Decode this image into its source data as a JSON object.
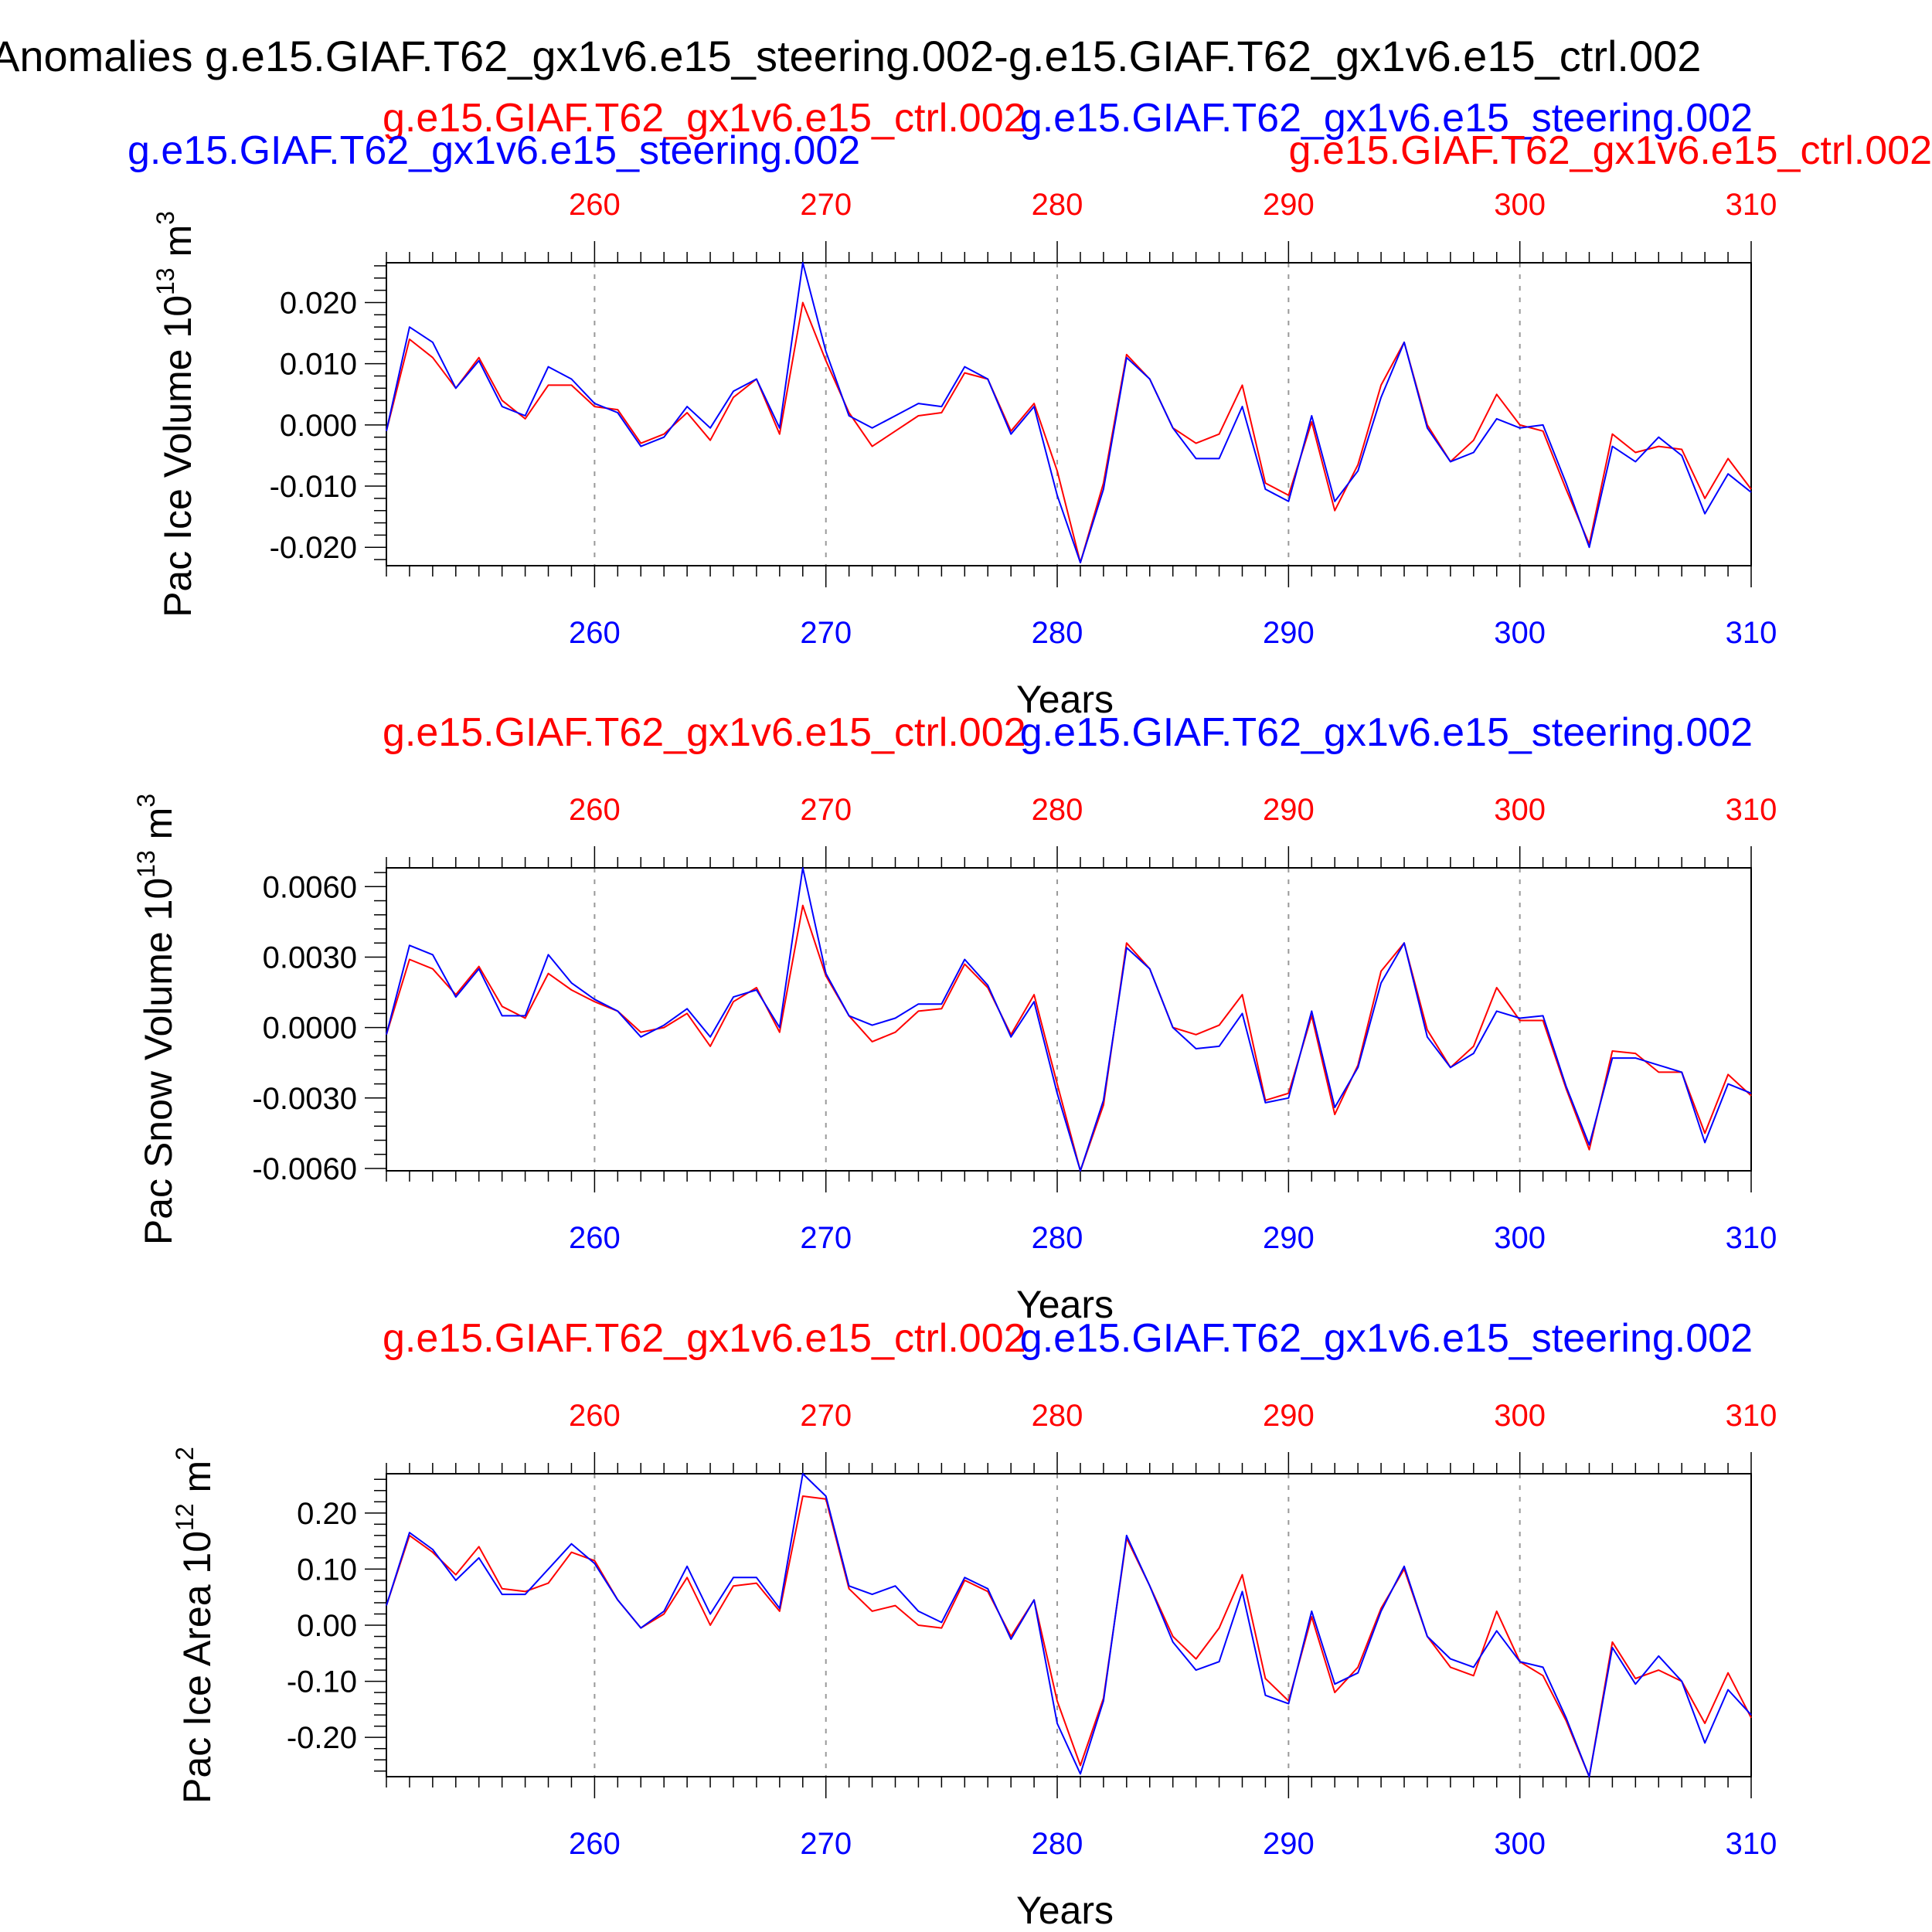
{
  "figure_title": "Anomalies g.e15.GIAF.T62_gx1v6.e15_steering.002-g.e15.GIAF.T62_gx1v6.e15_ctrl.002",
  "colors": {
    "ctrl": "#ff0000",
    "steering": "#0000ff",
    "axis": "#000000",
    "grid": "#999999"
  },
  "chart_data": [
    {
      "type": "line",
      "top_labels": {
        "red": "g.e15.GIAF.T62_gx1v6.e15_ctrl.002",
        "blue": "g.e15.GIAF.T62_gx1v6.e15_steering.002"
      },
      "ylabel": "Pac Ice Volume 10^13 m^3",
      "ylabel_parts": {
        "base": "Pac Ice Volume 10",
        "exp": "13",
        "unit": " m",
        "unit_exp": "3"
      },
      "xlabel": "Years",
      "xlim": [
        251,
        310
      ],
      "ylim": [
        -0.023,
        0.0265
      ],
      "xticks": [
        260,
        270,
        280,
        290,
        300,
        310
      ],
      "xtick_labels": [
        "260",
        "270",
        "280",
        "290",
        "300",
        "310"
      ],
      "yticks": [
        -0.02,
        -0.01,
        0.0,
        0.01,
        0.02
      ],
      "ytick_labels": [
        "-0.020",
        "-0.010",
        "0.000",
        "0.010",
        "0.020"
      ],
      "grid_x": true,
      "x": [
        251,
        252,
        253,
        254,
        255,
        256,
        257,
        258,
        259,
        260,
        261,
        262,
        263,
        264,
        265,
        266,
        267,
        268,
        269,
        270,
        271,
        272,
        273,
        274,
        275,
        276,
        277,
        278,
        279,
        280,
        281,
        282,
        283,
        284,
        285,
        286,
        287,
        288,
        289,
        290,
        291,
        292,
        293,
        294,
        295,
        296,
        297,
        298,
        299,
        300,
        301,
        302,
        303,
        304,
        305,
        306,
        307,
        308,
        309,
        310
      ],
      "series": [
        {
          "name": "g.e15.GIAF.T62_gx1v6.e15_ctrl.002",
          "color": "#ff0000",
          "values": [
            -0.001,
            0.014,
            0.011,
            0.006,
            0.011,
            0.004,
            0.001,
            0.0065,
            0.0065,
            0.003,
            0.0025,
            -0.003,
            -0.0015,
            0.002,
            -0.0025,
            0.0045,
            0.0075,
            -0.0015,
            0.02,
            0.0105,
            0.002,
            -0.0035,
            -0.001,
            0.0015,
            0.002,
            0.0085,
            0.0075,
            -0.001,
            0.0035,
            -0.0075,
            -0.0225,
            -0.0095,
            0.0115,
            0.0075,
            -0.0005,
            -0.003,
            -0.0015,
            0.0065,
            -0.0095,
            -0.0115,
            0.0005,
            -0.014,
            -0.0065,
            0.0065,
            0.0135,
            0.0,
            -0.006,
            -0.0025,
            0.005,
            0.0,
            -0.001,
            -0.0105,
            -0.0195,
            -0.0015,
            -0.0045,
            -0.0035,
            -0.004,
            -0.012,
            -0.0055,
            -0.0105
          ]
        },
        {
          "name": "g.e15.GIAF.T62_gx1v6.e15_steering.002",
          "color": "#0000ff",
          "values": [
            -0.001,
            0.016,
            0.0135,
            0.006,
            0.0105,
            0.003,
            0.0015,
            0.0095,
            0.0075,
            0.0035,
            0.002,
            -0.0035,
            -0.002,
            0.003,
            -0.0005,
            0.0055,
            0.0075,
            -0.0005,
            0.0265,
            0.012,
            0.0015,
            -0.0005,
            0.0015,
            0.0035,
            0.003,
            0.0095,
            0.0075,
            -0.0015,
            0.003,
            -0.0115,
            -0.0225,
            -0.0105,
            0.011,
            0.0075,
            -0.0005,
            -0.0055,
            -0.0055,
            0.003,
            -0.0105,
            -0.0125,
            0.0015,
            -0.0125,
            -0.0075,
            0.0045,
            0.0135,
            -0.0005,
            -0.006,
            -0.0045,
            0.001,
            -0.0005,
            0.0,
            -0.0095,
            -0.02,
            -0.0035,
            -0.006,
            -0.002,
            -0.005,
            -0.0145,
            -0.008,
            -0.011
          ]
        }
      ]
    },
    {
      "type": "line",
      "top_labels": {
        "red": "g.e15.GIAF.T62_gx1v6.e15_ctrl.002",
        "blue": "g.e15.GIAF.T62_gx1v6.e15_steering.002"
      },
      "ylabel": "Pac Snow Volume 10^13 m^3",
      "ylabel_parts": {
        "base": "Pac Snow Volume 10",
        "exp": "13",
        "unit": " m",
        "unit_exp": "3"
      },
      "xlabel": "Years",
      "xlim": [
        251,
        310
      ],
      "ylim": [
        -0.0061,
        0.0068
      ],
      "xticks": [
        260,
        270,
        280,
        290,
        300,
        310
      ],
      "xtick_labels": [
        "260",
        "270",
        "280",
        "290",
        "300",
        "310"
      ],
      "yticks": [
        -0.006,
        -0.003,
        0.0,
        0.003,
        0.006
      ],
      "ytick_labels": [
        "-0.0060",
        "-0.0030",
        "0.0000",
        "0.0030",
        "0.0060"
      ],
      "grid_x": true,
      "x": [
        251,
        252,
        253,
        254,
        255,
        256,
        257,
        258,
        259,
        260,
        261,
        262,
        263,
        264,
        265,
        266,
        267,
        268,
        269,
        270,
        271,
        272,
        273,
        274,
        275,
        276,
        277,
        278,
        279,
        280,
        281,
        282,
        283,
        284,
        285,
        286,
        287,
        288,
        289,
        290,
        291,
        292,
        293,
        294,
        295,
        296,
        297,
        298,
        299,
        300,
        301,
        302,
        303,
        304,
        305,
        306,
        307,
        308,
        309,
        310
      ],
      "series": [
        {
          "name": "g.e15.GIAF.T62_gx1v6.e15_ctrl.002",
          "color": "#ff0000",
          "values": [
            -0.0003,
            0.0029,
            0.0025,
            0.0014,
            0.0026,
            0.0009,
            0.0004,
            0.0023,
            0.0016,
            0.0011,
            0.0007,
            -0.0002,
            0.0,
            0.0006,
            -0.0008,
            0.0011,
            0.0017,
            -0.0002,
            0.0052,
            0.0022,
            0.0005,
            -0.0006,
            -0.0002,
            0.0007,
            0.0008,
            0.0027,
            0.0017,
            -0.0003,
            0.0014,
            -0.0024,
            -0.0061,
            -0.0033,
            0.0036,
            0.0025,
            0.0,
            -0.0003,
            0.0001,
            0.0014,
            -0.0031,
            -0.0028,
            0.0005,
            -0.0037,
            -0.0016,
            0.0024,
            0.0036,
            -0.0001,
            -0.0017,
            -0.0008,
            0.0017,
            0.0003,
            0.0003,
            -0.0026,
            -0.0052,
            -0.001,
            -0.0011,
            -0.0019,
            -0.0019,
            -0.0045,
            -0.002,
            -0.0029
          ]
        },
        {
          "name": "g.e15.GIAF.T62_gx1v6.e15_steering.002",
          "color": "#0000ff",
          "values": [
            -0.0003,
            0.0035,
            0.0031,
            0.0013,
            0.0025,
            0.0005,
            0.0005,
            0.0031,
            0.0019,
            0.0012,
            0.0007,
            -0.0004,
            0.0001,
            0.0008,
            -0.0004,
            0.0013,
            0.0016,
            0.0,
            0.0068,
            0.0023,
            0.0005,
            0.0001,
            0.0004,
            0.001,
            0.001,
            0.0029,
            0.0018,
            -0.0004,
            0.0011,
            -0.0028,
            -0.0061,
            -0.0031,
            0.0034,
            0.0025,
            0.0,
            -0.0009,
            -0.0008,
            0.0006,
            -0.0032,
            -0.003,
            0.0007,
            -0.0034,
            -0.0017,
            0.0019,
            0.0036,
            -0.0004,
            -0.0017,
            -0.0011,
            0.0007,
            0.0004,
            0.0005,
            -0.0025,
            -0.005,
            -0.0013,
            -0.0013,
            -0.0016,
            -0.0019,
            -0.0049,
            -0.0024,
            -0.0028
          ]
        }
      ]
    },
    {
      "type": "line",
      "top_labels": {
        "red": "g.e15.GIAF.T62_gx1v6.e15_ctrl.002",
        "blue": "g.e15.GIAF.T62_gx1v6.e15_steering.002"
      },
      "ylabel": "Pac Ice Area 10^12 m^2",
      "ylabel_parts": {
        "base": "Pac Ice Area 10",
        "exp": "12",
        "unit": " m",
        "unit_exp": "2"
      },
      "xlabel": "Years",
      "xlim": [
        251,
        310
      ],
      "ylim": [
        -0.27,
        0.27
      ],
      "xticks": [
        260,
        270,
        280,
        290,
        300,
        310
      ],
      "xtick_labels": [
        "260",
        "270",
        "280",
        "290",
        "300",
        "310"
      ],
      "yticks": [
        -0.2,
        -0.1,
        0.0,
        0.1,
        0.2
      ],
      "ytick_labels": [
        "-0.20",
        "-0.10",
        "0.00",
        "0.10",
        "0.20"
      ],
      "grid_x": true,
      "x": [
        251,
        252,
        253,
        254,
        255,
        256,
        257,
        258,
        259,
        260,
        261,
        262,
        263,
        264,
        265,
        266,
        267,
        268,
        269,
        270,
        271,
        272,
        273,
        274,
        275,
        276,
        277,
        278,
        279,
        280,
        281,
        282,
        283,
        284,
        285,
        286,
        287,
        288,
        289,
        290,
        291,
        292,
        293,
        294,
        295,
        296,
        297,
        298,
        299,
        300,
        301,
        302,
        303,
        304,
        305,
        306,
        307,
        308,
        309,
        310
      ],
      "series": [
        {
          "name": "g.e15.GIAF.T62_gx1v6.e15_ctrl.002",
          "color": "#ff0000",
          "values": [
            0.035,
            0.16,
            0.13,
            0.09,
            0.14,
            0.065,
            0.06,
            0.075,
            0.13,
            0.115,
            0.045,
            -0.005,
            0.02,
            0.085,
            0.0,
            0.07,
            0.075,
            0.025,
            0.23,
            0.225,
            0.065,
            0.025,
            0.035,
            0.0,
            -0.005,
            0.08,
            0.06,
            -0.02,
            0.045,
            -0.135,
            -0.25,
            -0.13,
            0.155,
            0.07,
            -0.02,
            -0.06,
            -0.005,
            0.09,
            -0.095,
            -0.135,
            0.015,
            -0.12,
            -0.075,
            0.03,
            0.1,
            -0.02,
            -0.075,
            -0.09,
            0.025,
            -0.065,
            -0.09,
            -0.17,
            -0.27,
            -0.03,
            -0.095,
            -0.08,
            -0.1,
            -0.175,
            -0.085,
            -0.165
          ]
        },
        {
          "name": "g.e15.GIAF.T62_gx1v6.e15_steering.002",
          "color": "#0000ff",
          "values": [
            0.035,
            0.165,
            0.135,
            0.08,
            0.12,
            0.055,
            0.055,
            0.1,
            0.145,
            0.11,
            0.045,
            -0.005,
            0.025,
            0.105,
            0.02,
            0.085,
            0.085,
            0.03,
            0.27,
            0.23,
            0.07,
            0.055,
            0.07,
            0.025,
            0.005,
            0.085,
            0.065,
            -0.025,
            0.045,
            -0.175,
            -0.265,
            -0.135,
            0.16,
            0.07,
            -0.03,
            -0.08,
            -0.065,
            0.06,
            -0.125,
            -0.14,
            0.025,
            -0.105,
            -0.085,
            0.025,
            0.105,
            -0.02,
            -0.06,
            -0.075,
            -0.01,
            -0.065,
            -0.075,
            -0.165,
            -0.27,
            -0.04,
            -0.105,
            -0.055,
            -0.1,
            -0.21,
            -0.115,
            -0.16
          ]
        }
      ]
    }
  ]
}
